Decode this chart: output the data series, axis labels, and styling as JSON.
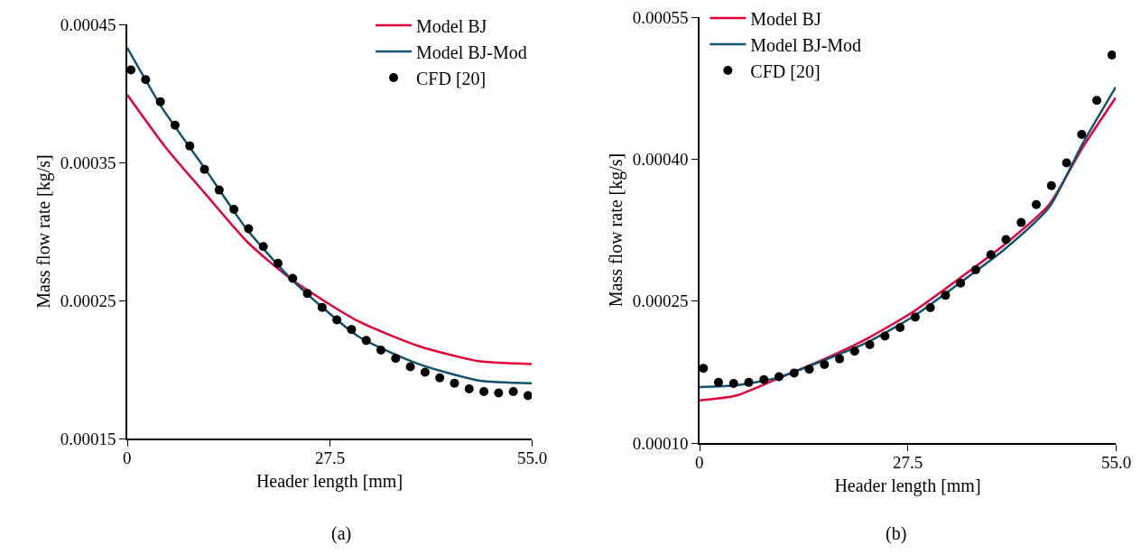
{
  "chart_data": [
    {
      "type": "line",
      "xlabel": "Header length [mm]",
      "ylabel": "Mass flow rate [kg/s]",
      "legend": "top right",
      "annotations": [
        "(a)"
      ],
      "xlim": [
        0,
        55
      ],
      "xticks": [
        0,
        27.5,
        {
          "value": 55,
          "label": "55.0"
        }
      ],
      "ylim": [
        0.00015,
        0.00045
      ],
      "yticks": [
        0.00015,
        0.00025,
        0.00035,
        0.00045
      ],
      "series": [
        {
          "name": "Model BJ",
          "color": "#e4003a",
          "line_style": "solid",
          "marker": "none",
          "x": [
            0,
            5.2,
            10.5,
            16.4,
            22.4,
            31.4,
            39.6,
            47.8,
            55
          ],
          "values": [
            0.000399,
            0.000361,
            0.000328,
            0.000292,
            0.000265,
            0.000235,
            0.000217,
            0.000206,
            0.000204
          ]
        },
        {
          "name": "Model BJ-Mod",
          "color": "#0f5373",
          "line_style": "solid",
          "marker": "none",
          "x": [
            0,
            4.8,
            10.5,
            16.2,
            22.4,
            31.4,
            39.6,
            47.8,
            55
          ],
          "values": [
            0.000433,
            0.000389,
            0.000346,
            0.000302,
            0.000265,
            0.000224,
            0.000204,
            0.000192,
            0.00019
          ]
        },
        {
          "name": "CFD [20]",
          "type": "scatter",
          "color": "#000000",
          "marker": "circle",
          "x": [
            0.5,
            2.5,
            4.5,
            6.5,
            8.5,
            10.5,
            12.5,
            14.5,
            16.5,
            18.5,
            20.5,
            22.5,
            24.5,
            26.5,
            28.5,
            30.5,
            32.5,
            34.5,
            36.5,
            38.5,
            40.5,
            42.5,
            44.5,
            46.5,
            48.5,
            50.5,
            52.5,
            54.5
          ],
          "values": [
            0.000417,
            0.00041,
            0.000394,
            0.000377,
            0.000362,
            0.000345,
            0.00033,
            0.000316,
            0.000302,
            0.000289,
            0.000277,
            0.000266,
            0.000255,
            0.000245,
            0.000236,
            0.000229,
            0.000221,
            0.000214,
            0.000208,
            0.000202,
            0.000198,
            0.000194,
            0.00019,
            0.000186,
            0.000184,
            0.000183,
            0.000184,
            0.000181
          ]
        }
      ]
    },
    {
      "type": "line",
      "xlabel": "Header length [mm]",
      "ylabel": "Mass flow rate [kg/s]",
      "legend": "top left",
      "annotations": [
        "(b)"
      ],
      "xlim": [
        0,
        55
      ],
      "xticks": [
        0,
        27.5,
        {
          "value": 55,
          "label": "55.0"
        }
      ],
      "ylim": [
        0.0001,
        0.00055
      ],
      "yticks": [
        {
          "value": 0.0001,
          "label": "0.00010"
        },
        0.00025,
        {
          "value": 0.0004,
          "label": "0.00040"
        },
        0.00055
      ],
      "series": [
        {
          "name": "Model BJ",
          "color": "#e4003a",
          "line_style": "solid",
          "marker": "none",
          "x": [
            0,
            4.8,
            10.3,
            16.3,
            22.3,
            28.3,
            34.2,
            40.2,
            46.2,
            50.6,
            55
          ],
          "values": [
            0.000145,
            0.00015,
            0.000168,
            0.000188,
            0.000211,
            0.000239,
            0.000273,
            0.000309,
            0.000352,
            0.000412,
            0.000465
          ]
        },
        {
          "name": "Model BJ-Mod",
          "color": "#0f5373",
          "line_style": "solid",
          "marker": "none",
          "x": [
            0,
            4.8,
            10.3,
            16.3,
            22.3,
            28.3,
            34.2,
            40.2,
            46.2,
            50.6,
            55
          ],
          "values": [
            0.000159,
            0.000161,
            0.000169,
            0.000187,
            0.000207,
            0.000234,
            0.000268,
            0.000304,
            0.000349,
            0.000416,
            0.000476
          ]
        },
        {
          "name": "CFD [20]",
          "type": "scatter",
          "color": "#000000",
          "marker": "circle",
          "x": [
            0.5,
            2.5,
            4.5,
            6.5,
            8.5,
            10.5,
            12.5,
            14.5,
            16.5,
            18.5,
            20.5,
            22.5,
            24.5,
            26.5,
            28.5,
            30.5,
            32.5,
            34.5,
            36.5,
            38.5,
            40.5,
            42.5,
            44.5,
            46.5,
            48.5,
            50.5,
            52.5,
            54.5
          ],
          "values": [
            0.000179,
            0.000164,
            0.000163,
            0.000164,
            0.000167,
            0.00017,
            0.000174,
            0.000178,
            0.000183,
            0.000189,
            0.000197,
            0.000204,
            0.000213,
            0.000222,
            0.000233,
            0.000243,
            0.000256,
            0.000269,
            0.000283,
            0.000299,
            0.000315,
            0.000333,
            0.000352,
            0.000372,
            0.000396,
            0.000426,
            0.000462,
            0.00051
          ]
        }
      ]
    }
  ]
}
